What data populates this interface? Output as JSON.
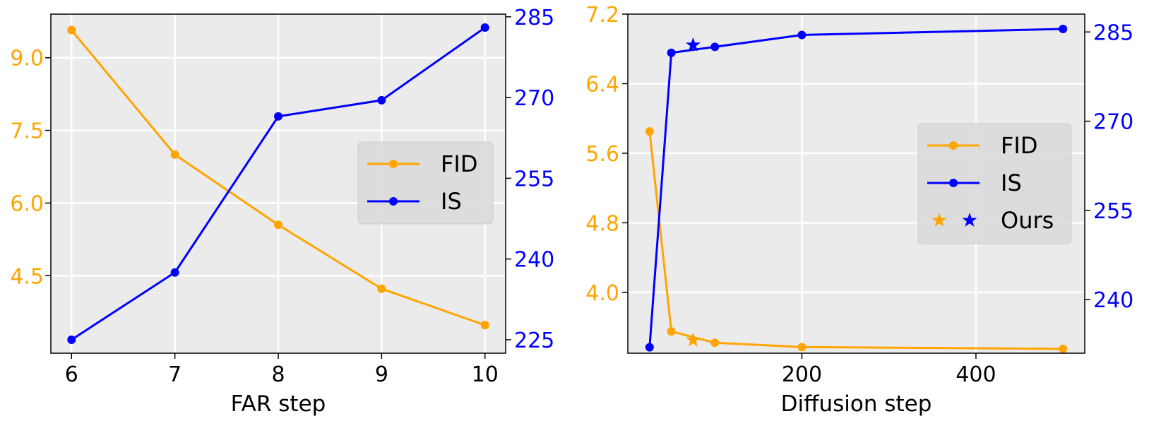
{
  "colors": {
    "fid": "#FFA500",
    "is": "#0000FF",
    "axes_bg": "#EBEBEB",
    "grid": "#FFFFFF",
    "legend_bg": "#D9D9D9"
  },
  "chart_data": [
    {
      "type": "line",
      "xlabel": "FAR step",
      "x": [
        6,
        7,
        8,
        9,
        10
      ],
      "xticks": [
        "6",
        "7",
        "8",
        "9",
        "10"
      ],
      "xlim": [
        5.8,
        10.2
      ],
      "series": [
        {
          "name": "FID",
          "axis": "left",
          "values": [
            9.57,
            7.0,
            5.55,
            4.23,
            3.48
          ]
        },
        {
          "name": "IS",
          "axis": "right",
          "values": [
            225.0,
            237.5,
            266.5,
            269.5,
            283.0
          ]
        }
      ],
      "y_left": {
        "ylim": [
          2.9,
          9.9
        ],
        "ticks": [
          4.5,
          6.0,
          7.5,
          9.0
        ],
        "tick_labels": [
          "4.5",
          "6.0",
          "7.5",
          "9.0"
        ]
      },
      "y_right": {
        "ylim": [
          222.5,
          285.5
        ],
        "ticks": [
          225,
          240,
          255,
          270,
          285
        ],
        "tick_labels": [
          "225",
          "240",
          "255",
          "270",
          "285"
        ]
      },
      "grid": true,
      "legend": {
        "position": "center-right",
        "entries": [
          "FID",
          "IS"
        ]
      }
    },
    {
      "type": "line",
      "xlabel": "Diffusion step",
      "x": [
        25,
        50,
        100,
        200,
        500
      ],
      "xticks": [
        "200",
        "400"
      ],
      "xtick_values": [
        200,
        400
      ],
      "xlim": [
        0,
        525
      ],
      "series": [
        {
          "name": "FID",
          "axis": "left",
          "values": [
            5.85,
            3.55,
            3.42,
            3.37,
            3.35
          ]
        },
        {
          "name": "IS",
          "axis": "right",
          "values": [
            232.0,
            281.5,
            282.5,
            284.5,
            285.5
          ]
        }
      ],
      "ours": {
        "x": 75,
        "fid": 3.45,
        "is": 282.8
      },
      "y_left": {
        "ylim": [
          3.3,
          7.2
        ],
        "ticks": [
          4.0,
          4.8,
          5.6,
          6.4,
          7.2
        ],
        "tick_labels": [
          "4.0",
          "4.8",
          "5.6",
          "6.4",
          "7.2"
        ]
      },
      "y_right": {
        "ylim": [
          231.0,
          288.0
        ],
        "ticks": [
          240,
          255,
          270,
          285
        ],
        "tick_labels": [
          "240",
          "255",
          "270",
          "285"
        ]
      },
      "grid": true,
      "legend": {
        "position": "center-right",
        "entries": [
          "FID",
          "IS",
          "Ours"
        ]
      }
    }
  ]
}
